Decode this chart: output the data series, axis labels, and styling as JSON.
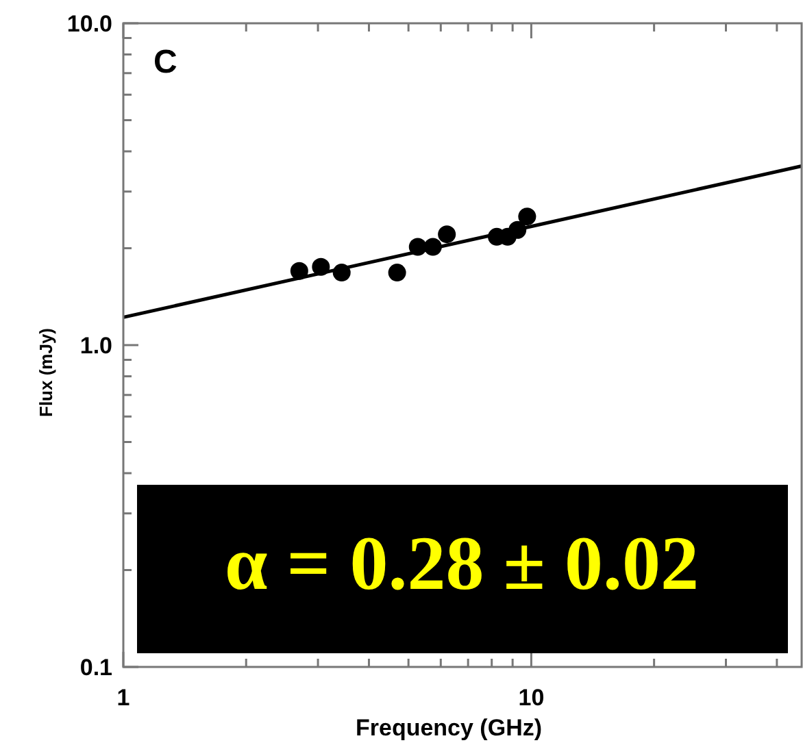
{
  "chart_data": {
    "type": "scatter",
    "xlabel": "Frequency (GHz)",
    "ylabel": "Flux (mJy)",
    "log": "xy",
    "grid": false,
    "xlim": [
      1,
      46
    ],
    "ylim": [
      0.1,
      10
    ],
    "xticks": [
      1,
      {
        "value": 2,
        "label": null
      },
      {
        "value": 3,
        "label": null
      },
      {
        "value": 4,
        "label": null
      },
      {
        "value": 5,
        "label": null
      },
      {
        "value": 6,
        "label": null
      },
      {
        "value": 7,
        "label": null
      },
      {
        "value": 8,
        "label": null
      },
      {
        "value": 9,
        "label": null
      },
      10,
      {
        "value": 20,
        "label": null
      },
      {
        "value": 30,
        "label": null
      },
      {
        "value": 40,
        "label": null
      }
    ],
    "yticks": [
      {
        "value": 0.1,
        "label": "0.1"
      },
      {
        "value": 0.2,
        "label": null
      },
      {
        "value": 0.3,
        "label": null
      },
      {
        "value": 0.4,
        "label": null
      },
      {
        "value": 0.5,
        "label": null
      },
      {
        "value": 0.6,
        "label": null
      },
      {
        "value": 0.7,
        "label": null
      },
      {
        "value": 0.8,
        "label": null
      },
      {
        "value": 0.9,
        "label": null
      },
      {
        "value": 1,
        "label": "1.0"
      },
      {
        "value": 2,
        "label": null
      },
      {
        "value": 3,
        "label": null
      },
      {
        "value": 4,
        "label": null
      },
      {
        "value": 5,
        "label": null
      },
      {
        "value": 6,
        "label": null
      },
      {
        "value": 7,
        "label": null
      },
      {
        "value": 8,
        "label": null
      },
      {
        "value": 9,
        "label": null
      },
      {
        "value": 10,
        "label": "10.0"
      }
    ],
    "series": [
      {
        "marker": "circle",
        "color": "#000000",
        "x": [
          2.7,
          3.05,
          3.43,
          4.69,
          5.27,
          5.74,
          6.21,
          8.23,
          8.75,
          9.25,
          9.77
        ],
        "values": [
          1.7,
          1.75,
          1.68,
          1.68,
          2.02,
          2.02,
          2.21,
          2.17,
          2.17,
          2.28,
          2.51
        ]
      },
      {
        "type": "line",
        "line_style": "solid",
        "color": "#000000",
        "x": [
          1,
          46
        ],
        "values": [
          1.22,
          3.6
        ]
      }
    ],
    "annotations": [
      "C",
      "α = 0.28 ± 0.02"
    ]
  }
}
